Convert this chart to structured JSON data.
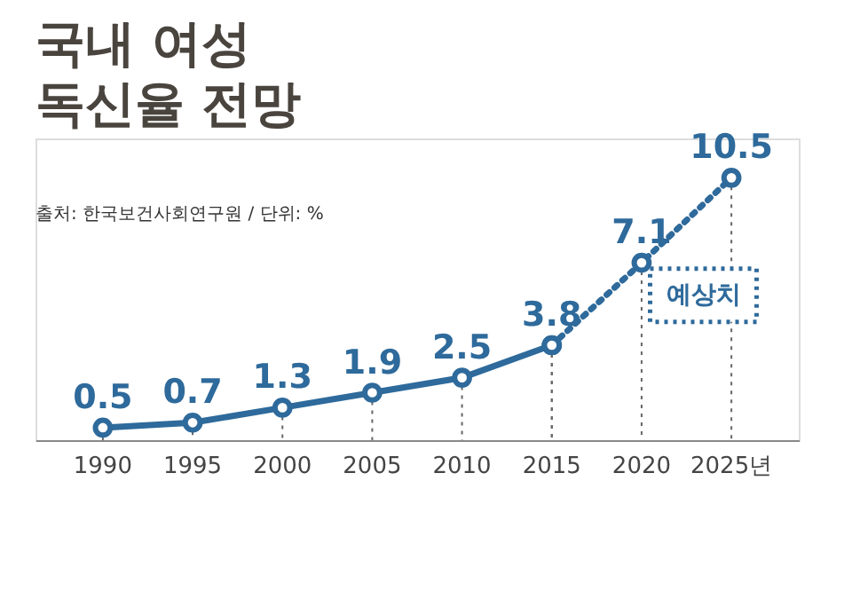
{
  "chart_data": {
    "type": "line",
    "title": "국내 여성 독신율 전망",
    "categories": [
      "1990",
      "1995",
      "2000",
      "2005",
      "2010",
      "2015",
      "2020",
      "2025년"
    ],
    "series": [
      {
        "color": "#2e6a9b",
        "line_style": "solid",
        "values": [
          0.5,
          0.7,
          1.3,
          1.9,
          2.5,
          3.8,
          null,
          null
        ],
        "value_labels": [
          "0.5",
          "0.7",
          "1.3",
          "1.9",
          "2.5",
          "3.8",
          null,
          null
        ]
      },
      {
        "color": "#2e6a9b",
        "line_style": "dotted",
        "values": [
          null,
          null,
          null,
          null,
          null,
          3.8,
          7.1,
          10.5
        ],
        "value_labels": [
          null,
          null,
          null,
          null,
          null,
          null,
          "7.1",
          "10.5"
        ]
      }
    ],
    "marker": "circle",
    "grid": "x",
    "tick_labels": "x",
    "annotations": [
      "출처: 한국보건사회연구원 / 단위: %",
      "예상치"
    ]
  }
}
